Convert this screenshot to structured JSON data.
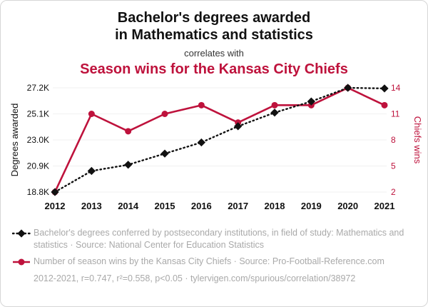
{
  "header": {
    "title_line1": "Bachelor's degrees awarded",
    "title_line2": "in Mathematics and statistics",
    "connector": "correlates with",
    "accent_title": "Season wins for the Kansas City Chiefs"
  },
  "colors": {
    "accent": "#be123c",
    "series_degrees": "#111111",
    "legend_gray": "#a9a9a9"
  },
  "chart_data": {
    "type": "line",
    "x": [
      2012,
      2013,
      2014,
      2015,
      2016,
      2017,
      2018,
      2019,
      2020,
      2021
    ],
    "series": [
      {
        "name": "Bachelor's degrees awarded in Mathematics and statistics",
        "axis": "left",
        "style": "dotted-diamond",
        "values": [
          18800,
          20500,
          21000,
          21900,
          22800,
          24100,
          25200,
          26100,
          27200,
          27150
        ]
      },
      {
        "name": "Season wins for the Kansas City Chiefs",
        "axis": "right",
        "style": "solid-circle",
        "values": [
          2,
          11,
          9,
          11,
          12,
          10,
          12,
          12,
          14,
          12
        ]
      }
    ],
    "left_axis": {
      "label": "Degrees awarded",
      "min": 18800,
      "max": 27200,
      "ticks": [
        "18.8K",
        "20.9K",
        "23.0K",
        "25.1K",
        "27.2K"
      ]
    },
    "right_axis": {
      "label": "Chiefs wins",
      "min": 2,
      "max": 14,
      "ticks": [
        "2",
        "5",
        "8",
        "11",
        "14"
      ]
    },
    "grid": "faint-horizontal",
    "legend_position": "below"
  },
  "legend": {
    "items": [
      {
        "marker": "black-diamond-dotted-line",
        "text": "Bachelor's degrees conferred by postsecondary institutions, in field of study: Mathematics and statistics · Source: National Center for Education Statistics"
      },
      {
        "marker": "red-circle-solid-line",
        "text": "Number of season wins by the Kansas City Chiefs · Source: Pro-Football-Reference.com"
      }
    ]
  },
  "footer": {
    "text": "2012-2021, r=0.747, r²=0.558, p<0.05 · tylervigen.com/spurious/correlation/38972"
  }
}
